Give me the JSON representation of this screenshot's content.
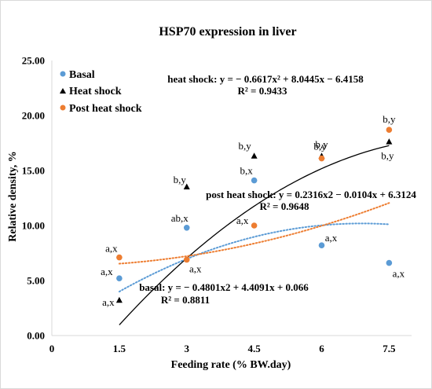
{
  "chart_data": {
    "type": "scatter",
    "title": "HSP70 expression in liver",
    "xlabel": "Feeding rate (% BW.day)",
    "ylabel": "Relative density, %",
    "xlim": [
      0,
      8
    ],
    "ylim": [
      0,
      25
    ],
    "x_ticks": [
      "0",
      "1.5",
      "3",
      "4.5",
      "6",
      "7.5"
    ],
    "y_ticks": [
      "0.00",
      "5.00",
      "10.00",
      "15.00",
      "20.00",
      "25.00"
    ],
    "grid": false,
    "legend_position": "top-left",
    "series": [
      {
        "name": "Basal",
        "color": "#5b9bd5",
        "marker": "circle",
        "points": [
          {
            "x": 1.5,
            "y": 5.2,
            "label": "a,x"
          },
          {
            "x": 3.0,
            "y": 9.8,
            "label": "ab,x"
          },
          {
            "x": 4.5,
            "y": 14.1,
            "label": "b,x"
          },
          {
            "x": 6.0,
            "y": 8.2,
            "label": "a,x"
          },
          {
            "x": 7.5,
            "y": 6.6,
            "label": "a,x"
          }
        ],
        "trendline": {
          "type": "polynomial",
          "a": -0.4801,
          "b": 4.4091,
          "c": 0.066,
          "style": "dotted"
        },
        "equation": "basal: y = − 0.4801x2 + 4.4091x + 0.066",
        "r2": "R² = 0.8811"
      },
      {
        "name": "Heat shock",
        "color": "#000000",
        "marker": "triangle",
        "points": [
          {
            "x": 1.5,
            "y": 3.2,
            "label": "a,x"
          },
          {
            "x": 3.0,
            "y": 13.5,
            "label": "b,y"
          },
          {
            "x": 4.5,
            "y": 16.3,
            "label": "b,y"
          },
          {
            "x": 6.0,
            "y": 16.3,
            "label": "b,y"
          },
          {
            "x": 7.5,
            "y": 17.6,
            "label": "b,y"
          }
        ],
        "trendline": {
          "type": "polynomial",
          "a": -0.6617,
          "b": 8.0445,
          "c": -6.4158,
          "style": "solid"
        },
        "equation": "heat shock: y = − 0.6617x² + 8.0445x − 6.4158",
        "r2": "R² = 0.9433"
      },
      {
        "name": "Post heat shock",
        "color": "#ed7d31",
        "marker": "circle",
        "points": [
          {
            "x": 1.5,
            "y": 7.1,
            "label": "a,x"
          },
          {
            "x": 3.0,
            "y": 6.9,
            "label": "a,x"
          },
          {
            "x": 4.5,
            "y": 10.0,
            "label": "a,x"
          },
          {
            "x": 6.0,
            "y": 16.1,
            "label": "b,y"
          },
          {
            "x": 7.5,
            "y": 18.7,
            "label": "b,y"
          }
        ],
        "trendline": {
          "type": "polynomial",
          "a": 0.2316,
          "b": -0.0104,
          "c": 6.3124,
          "style": "dotted"
        },
        "equation": "post heat shock: y = 0.2316x2 − 0.0104x + 6.3124",
        "r2": "R² = 0.9648"
      }
    ]
  }
}
